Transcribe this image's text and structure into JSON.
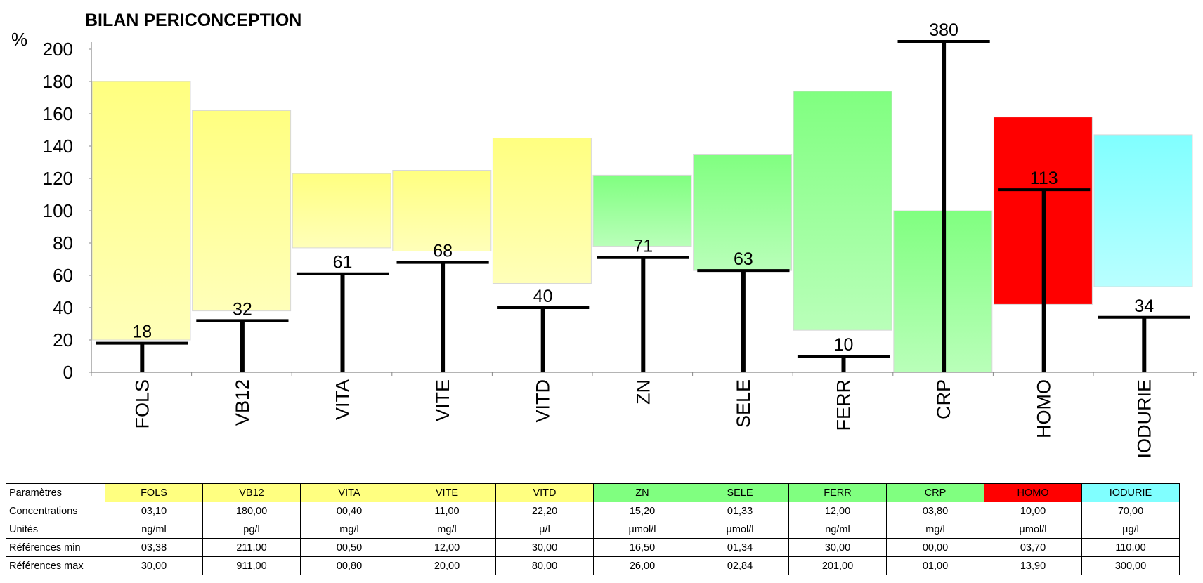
{
  "chart_data": {
    "type": "bar",
    "title": "BILAN PERICONCEPTION",
    "ylabel": "%",
    "ylim": [
      0,
      200
    ],
    "yticks": [
      0,
      20,
      40,
      60,
      80,
      100,
      120,
      140,
      160,
      180,
      200
    ],
    "grid": false,
    "categories": [
      "FOLS",
      "VB12",
      "VITA",
      "VITE",
      "VITD",
      "ZN",
      "SELE",
      "FERR",
      "CRP",
      "HOMO",
      "IODURIE"
    ],
    "reference_range_percent": [
      [
        20,
        180
      ],
      [
        38,
        162
      ],
      [
        77,
        123
      ],
      [
        75,
        125
      ],
      [
        55,
        145
      ],
      [
        78,
        122
      ],
      [
        63,
        135
      ],
      [
        26,
        174
      ],
      [
        0,
        100
      ],
      [
        42,
        158
      ],
      [
        53,
        147
      ]
    ],
    "values": [
      18,
      32,
      61,
      68,
      40,
      71,
      63,
      10,
      380,
      113,
      34
    ],
    "value_labels": [
      "18",
      "32",
      "61",
      "68",
      "40",
      "71",
      "63",
      "10",
      "380",
      "113",
      "34"
    ],
    "colors": {
      "yellow": "#ffff80",
      "green": "#80ff80",
      "red": "#ff0000",
      "cyan": "#80ffff"
    },
    "category_colors": [
      "yellow",
      "yellow",
      "yellow",
      "yellow",
      "yellow",
      "green",
      "green",
      "green",
      "green",
      "red",
      "cyan"
    ]
  },
  "table": {
    "header_label": "Paramètres",
    "params": [
      "FOLS",
      "VB12",
      "VITA",
      "VITE",
      "VITD",
      "ZN",
      "SELE",
      "FERR",
      "CRP",
      "HOMO",
      "IODURIE"
    ],
    "rows": [
      {
        "label": "Concentrations",
        "values": [
          "03,10",
          "180,00",
          "00,40",
          "11,00",
          "22,20",
          "15,20",
          "01,33",
          "12,00",
          "03,80",
          "10,00",
          "70,00"
        ]
      },
      {
        "label": "Unités",
        "values": [
          "ng/ml",
          "pg/l",
          "mg/l",
          "mg/l",
          "µ/l",
          "µmol/l",
          "µmol/l",
          "ng/ml",
          "mg/l",
          "µmol/l",
          "µg/l"
        ]
      },
      {
        "label": "Références min",
        "values": [
          "03,38",
          "211,00",
          "00,50",
          "12,00",
          "30,00",
          "16,50",
          "01,34",
          "30,00",
          "00,00",
          "03,70",
          "110,00"
        ]
      },
      {
        "label": "Références max",
        "values": [
          "30,00",
          "911,00",
          "00,80",
          "20,00",
          "80,00",
          "26,00",
          "02,84",
          "201,00",
          "01,00",
          "13,90",
          "300,00"
        ]
      }
    ]
  }
}
